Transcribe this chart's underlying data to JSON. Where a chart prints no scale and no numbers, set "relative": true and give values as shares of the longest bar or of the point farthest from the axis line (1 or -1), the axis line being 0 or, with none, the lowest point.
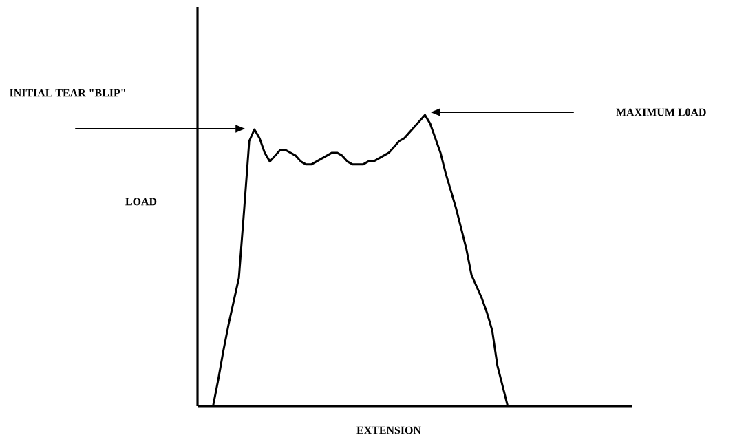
{
  "chart_data": {
    "type": "line",
    "relative": true,
    "color": "#000000",
    "xlabel": "EXTENSION",
    "ylabel": "LOAD",
    "annotations": [
      "INITIAL TEAR \"BLIP\"",
      "MAXIMUM L0AD"
    ],
    "categories": [
      null,
      null,
      null,
      null,
      null,
      null,
      null,
      null,
      null,
      null,
      null,
      null,
      null,
      null,
      null,
      null,
      null,
      null,
      null,
      null,
      null,
      null,
      null,
      null,
      null,
      null,
      null,
      null,
      null,
      null,
      null,
      null,
      null,
      null,
      null,
      null,
      null,
      null,
      null,
      null,
      null,
      null,
      null,
      null,
      null,
      null,
      null,
      null,
      null,
      null,
      null,
      null,
      null,
      null,
      null,
      null,
      null,
      null,
      null,
      null,
      null,
      null,
      null,
      null,
      null,
      null,
      null,
      null,
      null,
      null,
      null,
      null,
      null,
      null,
      null,
      null,
      null,
      null,
      null,
      null,
      null,
      null,
      null,
      null,
      null
    ],
    "values": [
      null,
      null,
      null,
      0,
      0.09,
      0.19,
      0.28,
      0.36,
      0.44,
      0.67,
      0.91,
      0.95,
      0.92,
      0.87,
      0.84,
      0.86,
      0.88,
      0.88,
      0.87,
      0.86,
      0.84,
      0.83,
      0.83,
      0.84,
      0.85,
      0.86,
      0.87,
      0.87,
      0.86,
      0.84,
      0.83,
      0.83,
      0.83,
      0.84,
      0.84,
      0.85,
      0.86,
      0.87,
      0.89,
      0.91,
      0.92,
      0.94,
      0.96,
      0.98,
      1,
      0.97,
      0.92,
      0.87,
      0.8,
      0.74,
      0.68,
      0.61,
      0.54,
      0.45,
      0.41,
      0.37,
      0.32,
      0.26,
      0.14,
      0.07,
      0,
      null,
      null,
      null,
      null,
      null,
      null,
      null,
      null,
      null,
      null,
      null,
      null,
      null,
      null,
      null,
      null,
      null,
      null,
      null,
      null,
      null,
      null,
      null,
      null
    ]
  }
}
